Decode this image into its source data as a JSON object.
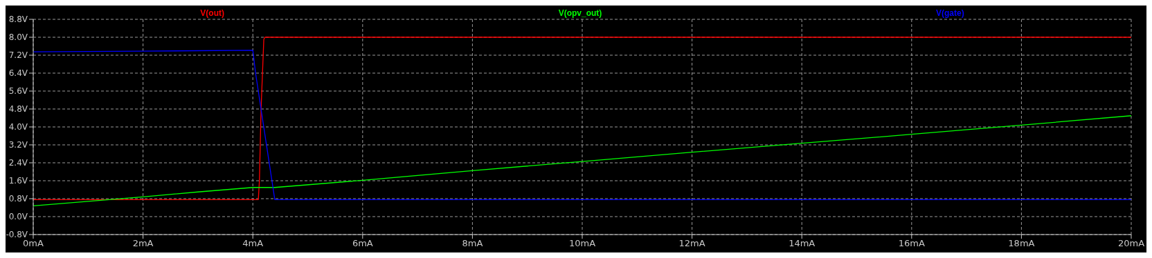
{
  "chart_data": {
    "type": "line",
    "legend": "top",
    "grid": true,
    "line_style": "solid",
    "xlim": [
      0,
      20
    ],
    "xticks": [
      {
        "value": 0,
        "label": "0mA"
      },
      {
        "value": 2,
        "label": "2mA"
      },
      {
        "value": 4,
        "label": "4mA"
      },
      {
        "value": 6,
        "label": "6mA"
      },
      {
        "value": 8,
        "label": "8mA"
      },
      {
        "value": 10,
        "label": "10mA"
      },
      {
        "value": 12,
        "label": "12mA"
      },
      {
        "value": 14,
        "label": "14mA"
      },
      {
        "value": 16,
        "label": "16mA"
      },
      {
        "value": 18,
        "label": "18mA"
      },
      {
        "value": 20,
        "label": "20mA"
      }
    ],
    "ylim": [
      -0.8,
      8.8
    ],
    "yticks": [
      {
        "value": -0.8,
        "label": "-0.8V"
      },
      {
        "value": 0,
        "label": "0.0V"
      },
      {
        "value": 0.8,
        "label": "0.8V"
      },
      {
        "value": 1.6,
        "label": "1.6V"
      },
      {
        "value": 2.4,
        "label": "2.4V"
      },
      {
        "value": 3.2,
        "label": "3.2V"
      },
      {
        "value": 4,
        "label": "4.0V"
      },
      {
        "value": 4.8,
        "label": "4.8V"
      },
      {
        "value": 5.6,
        "label": "5.6V"
      },
      {
        "value": 6.4,
        "label": "6.4V"
      },
      {
        "value": 7.2,
        "label": "7.2V"
      },
      {
        "value": 8,
        "label": "8.0V"
      },
      {
        "value": 8.8,
        "label": "8.8V"
      }
    ],
    "series": [
      {
        "name": "V(out)",
        "color": "#ff0000",
        "x": [
          0,
          4.1,
          4.12,
          4.15,
          4.2,
          4.22,
          20
        ],
        "values": [
          0.76,
          0.76,
          1.6,
          4.8,
          7.9,
          8.0,
          8.0
        ]
      },
      {
        "name": "V(opv_out)",
        "color": "#00ff00",
        "x": [
          0,
          1,
          2,
          3,
          4,
          4.4,
          6,
          8,
          10,
          12,
          14,
          16,
          18,
          20
        ],
        "values": [
          0.48,
          0.68,
          0.88,
          1.1,
          1.3,
          1.3,
          1.62,
          2.05,
          2.46,
          2.87,
          3.27,
          3.67,
          4.08,
          4.5
        ]
      },
      {
        "name": "V(gate)",
        "color": "#0000ff",
        "x": [
          0,
          2,
          4,
          4.05,
          4.4,
          20
        ],
        "values": [
          7.35,
          7.38,
          7.42,
          6.4,
          0.76,
          0.76
        ]
      }
    ]
  }
}
